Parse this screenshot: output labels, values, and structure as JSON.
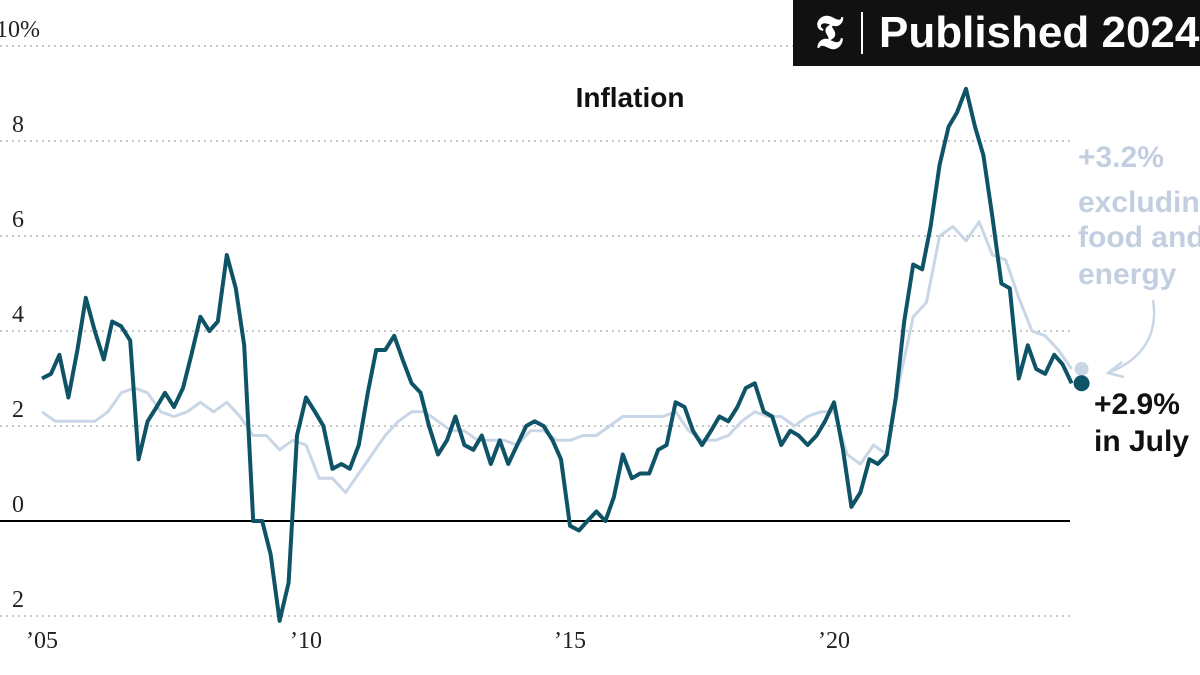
{
  "badge": {
    "logo": "𝕿",
    "text": "Published 2024"
  },
  "chart_data": {
    "type": "line",
    "title": "Inflation",
    "xlabel": "",
    "ylabel": "",
    "ylim": [
      -2,
      10
    ],
    "xlim": [
      2005.0,
      2024.6
    ],
    "yticks": [
      {
        "value": 10,
        "label": "10%"
      },
      {
        "value": 8,
        "label": "8"
      },
      {
        "value": 6,
        "label": "6"
      },
      {
        "value": 4,
        "label": "4"
      },
      {
        "value": 2,
        "label": "2"
      },
      {
        "value": 0,
        "label": "0"
      },
      {
        "value": -2,
        "label": "2"
      }
    ],
    "xticks": [
      {
        "value": 2005,
        "label": "’05"
      },
      {
        "value": 2010,
        "label": "’10"
      },
      {
        "value": 2015,
        "label": "’15"
      },
      {
        "value": 2020,
        "label": "’20"
      }
    ],
    "grid": true,
    "colors": {
      "headline": "#0f5367",
      "core": "#c9d6e6",
      "axis": "#000000",
      "grid": "#b5b5b5"
    },
    "series": [
      {
        "name": "headline",
        "x": [
          2005.0,
          2005.17,
          2005.33,
          2005.5,
          2005.67,
          2005.83,
          2006.0,
          2006.17,
          2006.33,
          2006.5,
          2006.67,
          2006.83,
          2007.0,
          2007.17,
          2007.33,
          2007.5,
          2007.67,
          2007.83,
          2008.0,
          2008.17,
          2008.33,
          2008.5,
          2008.67,
          2008.83,
          2009.0,
          2009.17,
          2009.33,
          2009.5,
          2009.67,
          2009.83,
          2010.0,
          2010.17,
          2010.33,
          2010.5,
          2010.67,
          2010.83,
          2011.0,
          2011.17,
          2011.33,
          2011.5,
          2011.67,
          2011.83,
          2012.0,
          2012.17,
          2012.33,
          2012.5,
          2012.67,
          2012.83,
          2013.0,
          2013.17,
          2013.33,
          2013.5,
          2013.67,
          2013.83,
          2014.0,
          2014.17,
          2014.33,
          2014.5,
          2014.67,
          2014.83,
          2015.0,
          2015.17,
          2015.33,
          2015.5,
          2015.67,
          2015.83,
          2016.0,
          2016.17,
          2016.33,
          2016.5,
          2016.67,
          2016.83,
          2017.0,
          2017.17,
          2017.33,
          2017.5,
          2017.67,
          2017.83,
          2018.0,
          2018.17,
          2018.33,
          2018.5,
          2018.67,
          2018.83,
          2019.0,
          2019.17,
          2019.33,
          2019.5,
          2019.67,
          2019.83,
          2020.0,
          2020.17,
          2020.33,
          2020.5,
          2020.67,
          2020.83,
          2021.0,
          2021.17,
          2021.33,
          2021.5,
          2021.67,
          2021.83,
          2022.0,
          2022.17,
          2022.33,
          2022.5,
          2022.67,
          2022.83,
          2023.0,
          2023.17,
          2023.33,
          2023.5,
          2023.67,
          2023.83,
          2024.0,
          2024.17,
          2024.33,
          2024.5
        ],
        "y": [
          3.0,
          3.1,
          3.5,
          2.6,
          3.6,
          4.7,
          4.0,
          3.4,
          4.2,
          4.1,
          3.8,
          1.3,
          2.1,
          2.4,
          2.7,
          2.4,
          2.8,
          3.5,
          4.3,
          4.0,
          4.2,
          5.6,
          4.9,
          3.7,
          0.0,
          0.0,
          -0.7,
          -2.1,
          -1.3,
          1.8,
          2.6,
          2.3,
          2.0,
          1.1,
          1.2,
          1.1,
          1.6,
          2.7,
          3.6,
          3.6,
          3.9,
          3.4,
          2.9,
          2.7,
          2.0,
          1.4,
          1.7,
          2.2,
          1.6,
          1.5,
          1.8,
          1.2,
          1.7,
          1.2,
          1.6,
          2.0,
          2.1,
          2.0,
          1.7,
          1.3,
          -0.1,
          -0.2,
          0.0,
          0.2,
          0.0,
          0.5,
          1.4,
          0.9,
          1.0,
          1.0,
          1.5,
          1.6,
          2.5,
          2.4,
          1.9,
          1.6,
          1.9,
          2.2,
          2.1,
          2.4,
          2.8,
          2.9,
          2.3,
          2.2,
          1.6,
          1.9,
          1.8,
          1.6,
          1.8,
          2.1,
          2.5,
          1.5,
          0.3,
          0.6,
          1.3,
          1.2,
          1.4,
          2.6,
          4.2,
          5.4,
          5.3,
          6.2,
          7.5,
          8.3,
          8.6,
          9.1,
          8.3,
          7.7,
          6.4,
          5.0,
          4.9,
          3.0,
          3.7,
          3.2,
          3.1,
          3.5,
          3.3,
          2.9
        ]
      },
      {
        "name": "core",
        "x": [
          2005.0,
          2005.25,
          2005.5,
          2005.75,
          2006.0,
          2006.25,
          2006.5,
          2006.75,
          2007.0,
          2007.25,
          2007.5,
          2007.75,
          2008.0,
          2008.25,
          2008.5,
          2008.75,
          2009.0,
          2009.25,
          2009.5,
          2009.75,
          2010.0,
          2010.25,
          2010.5,
          2010.75,
          2011.0,
          2011.25,
          2011.5,
          2011.75,
          2012.0,
          2012.25,
          2012.5,
          2012.75,
          2013.0,
          2013.25,
          2013.5,
          2013.75,
          2014.0,
          2014.25,
          2014.5,
          2014.75,
          2015.0,
          2015.25,
          2015.5,
          2015.75,
          2016.0,
          2016.25,
          2016.5,
          2016.75,
          2017.0,
          2017.25,
          2017.5,
          2017.75,
          2018.0,
          2018.25,
          2018.5,
          2018.75,
          2019.0,
          2019.25,
          2019.5,
          2019.75,
          2020.0,
          2020.25,
          2020.5,
          2020.75,
          2021.0,
          2021.25,
          2021.5,
          2021.75,
          2022.0,
          2022.25,
          2022.5,
          2022.75,
          2023.0,
          2023.25,
          2023.5,
          2023.75,
          2024.0,
          2024.25,
          2024.5
        ],
        "y": [
          2.3,
          2.1,
          2.1,
          2.1,
          2.1,
          2.3,
          2.7,
          2.8,
          2.7,
          2.3,
          2.2,
          2.3,
          2.5,
          2.3,
          2.5,
          2.2,
          1.8,
          1.8,
          1.5,
          1.7,
          1.6,
          0.9,
          0.9,
          0.6,
          1.0,
          1.4,
          1.8,
          2.1,
          2.3,
          2.3,
          2.1,
          1.9,
          1.9,
          1.7,
          1.7,
          1.7,
          1.6,
          1.9,
          1.9,
          1.7,
          1.7,
          1.8,
          1.8,
          2.0,
          2.2,
          2.2,
          2.2,
          2.2,
          2.3,
          1.9,
          1.7,
          1.7,
          1.8,
          2.1,
          2.3,
          2.2,
          2.2,
          2.0,
          2.2,
          2.3,
          2.3,
          1.4,
          1.2,
          1.6,
          1.4,
          3.0,
          4.3,
          4.6,
          6.0,
          6.2,
          5.9,
          6.3,
          5.6,
          5.5,
          4.7,
          4.0,
          3.9,
          3.6,
          3.2
        ]
      }
    ],
    "annotations": {
      "core": [
        "+3.2%",
        "excluding",
        "food and",
        "energy"
      ],
      "headline": [
        "+2.9%",
        "in July"
      ]
    }
  }
}
